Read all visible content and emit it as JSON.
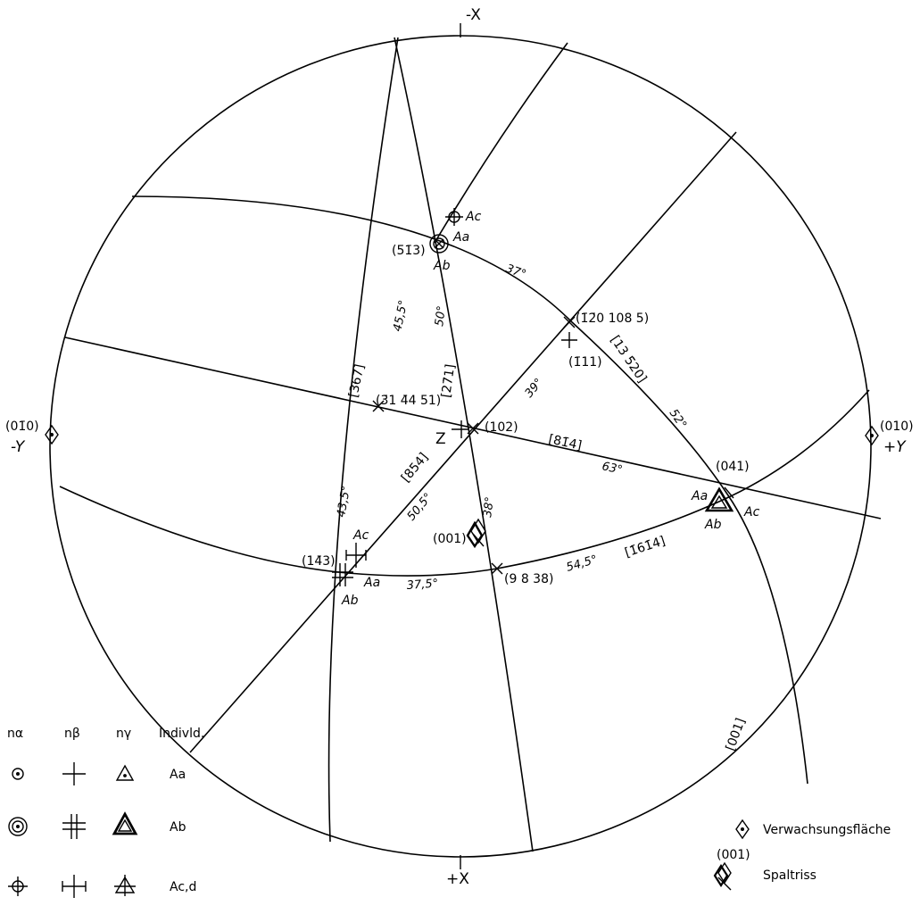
{
  "axes": {
    "top": "-X",
    "bottom": "+X",
    "left_code": "(01̄0)",
    "left_sign": "-Y",
    "right_code": "(010)",
    "right_sign": "+Y",
    "center": "Z"
  },
  "poles": {
    "p513": "(5̄1̄3)",
    "p120": "(1̄2̄0 108 5)",
    "p111": "(1̄11)",
    "p31": "(3̄1 4̄4 51)",
    "p102": "(102)",
    "p041": "(041)",
    "p001": "(001)",
    "p143": "(14̄3)",
    "p9838": "(9 8 38)"
  },
  "zones": {
    "z367": "[367]",
    "z271": "[27̄1]",
    "z13520": "[13 5̄20]",
    "z814": "[81̄4]",
    "z854": "[854]",
    "z1614": "[1̄61̄4]",
    "z001": "[001]"
  },
  "angles": {
    "a37": "37°",
    "a455": "45,5°",
    "a50": "50°",
    "a39": "39°",
    "a52": "52°",
    "a63": "63°",
    "a435": "43,5°",
    "a505": "50,5°",
    "a38": "38°",
    "a545": "54,5°",
    "a375": "37,5°"
  },
  "indiv": {
    "ac": "Ac",
    "aa": "Aa",
    "ab": "Ab"
  },
  "legend": {
    "headers": [
      "nα",
      "nβ",
      "nγ",
      "Indivld."
    ],
    "rows": [
      "Aa",
      "Ab",
      "Ac,d"
    ],
    "twin_face": "Verwachsungsfläche",
    "cleavage_code": "(001)",
    "cleavage": "Spaltriss"
  },
  "icons": {
    "circle_dot": "circle-dot-icon",
    "double_circle": "double-circle-icon",
    "circle_tick": "circle-tick-icon",
    "cross": "cross-icon",
    "double_cross": "double-cross-icon",
    "cross_ticks": "cross-ticks-icon",
    "triangle": "triangle-icon",
    "double_triangle": "double-triangle-icon",
    "triangle_tick": "triangle-tick-icon",
    "diamond": "diamond-icon"
  }
}
